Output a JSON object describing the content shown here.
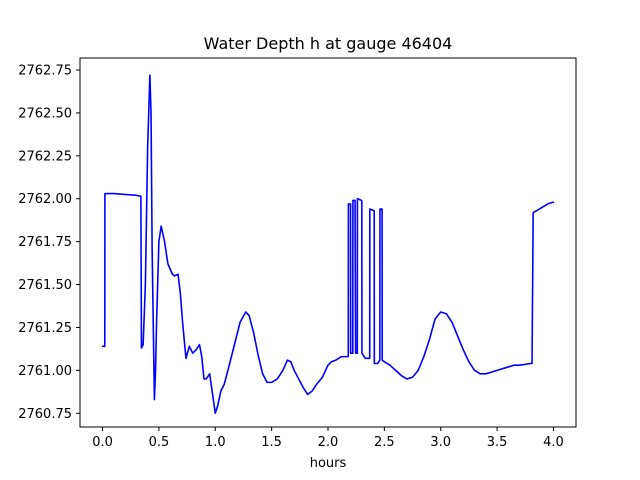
{
  "chart_data": {
    "type": "line",
    "title": "Water Depth h at gauge 46404",
    "xlabel": "hours",
    "ylabel": "",
    "xlim": [
      -0.2,
      4.2
    ],
    "ylim": [
      2760.67,
      2762.82
    ],
    "grid": false,
    "legend": "none",
    "x_ticks": [
      0.0,
      0.5,
      1.0,
      1.5,
      2.0,
      2.5,
      3.0,
      3.5,
      4.0
    ],
    "x_tick_labels": [
      "0.0",
      "0.5",
      "1.0",
      "1.5",
      "2.0",
      "2.5",
      "3.0",
      "3.5",
      "4.0"
    ],
    "y_ticks": [
      2760.75,
      2761.0,
      2761.25,
      2761.5,
      2761.75,
      2762.0,
      2762.25,
      2762.5,
      2762.75
    ],
    "y_tick_labels": [
      "2760.75",
      "2761.00",
      "2761.25",
      "2761.50",
      "2761.75",
      "2762.00",
      "2762.25",
      "2762.50",
      "2762.75"
    ],
    "series": [
      {
        "color": "#0000ff",
        "x": [
          0.0,
          0.02,
          0.021,
          0.1,
          0.2,
          0.3,
          0.33,
          0.34,
          0.345,
          0.36,
          0.38,
          0.4,
          0.42,
          0.43,
          0.44,
          0.46,
          0.47,
          0.48,
          0.5,
          0.52,
          0.55,
          0.58,
          0.62,
          0.64,
          0.67,
          0.69,
          0.71,
          0.74,
          0.77,
          0.8,
          0.83,
          0.86,
          0.88,
          0.9,
          0.92,
          0.95,
          0.97,
          1.0,
          1.02,
          1.05,
          1.08,
          1.12,
          1.17,
          1.22,
          1.27,
          1.3,
          1.34,
          1.38,
          1.42,
          1.46,
          1.5,
          1.55,
          1.6,
          1.64,
          1.67,
          1.7,
          1.74,
          1.78,
          1.82,
          1.86,
          1.9,
          1.95,
          2.0,
          2.03,
          2.07,
          2.12,
          2.16,
          2.18,
          2.181,
          2.2,
          2.201,
          2.22,
          2.221,
          2.24,
          2.245,
          2.26,
          2.261,
          2.3,
          2.301,
          2.33,
          2.36,
          2.37,
          2.371,
          2.41,
          2.411,
          2.44,
          2.46,
          2.461,
          2.48,
          2.481,
          2.5,
          2.55,
          2.6,
          2.65,
          2.7,
          2.75,
          2.8,
          2.85,
          2.9,
          2.95,
          3.0,
          3.05,
          3.1,
          3.15,
          3.2,
          3.25,
          3.3,
          3.35,
          3.4,
          3.45,
          3.5,
          3.55,
          3.6,
          3.65,
          3.7,
          3.8,
          3.81,
          3.82,
          3.85,
          3.9,
          3.95,
          4.0
        ],
        "y": [
          2761.14,
          2761.14,
          2762.03,
          2762.03,
          2762.025,
          2762.02,
          2762.015,
          2762.015,
          2761.13,
          2761.15,
          2761.5,
          2762.3,
          2762.72,
          2762.5,
          2761.7,
          2760.83,
          2761.0,
          2761.3,
          2761.75,
          2761.84,
          2761.75,
          2761.62,
          2761.56,
          2761.55,
          2761.56,
          2761.45,
          2761.28,
          2761.07,
          2761.14,
          2761.1,
          2761.12,
          2761.15,
          2761.08,
          2760.95,
          2760.95,
          2760.98,
          2760.89,
          2760.75,
          2760.79,
          2760.88,
          2760.92,
          2761.02,
          2761.15,
          2761.28,
          2761.34,
          2761.32,
          2761.22,
          2761.09,
          2760.98,
          2760.93,
          2760.93,
          2760.95,
          2761.0,
          2761.06,
          2761.05,
          2761.0,
          2760.95,
          2760.9,
          2760.86,
          2760.88,
          2760.92,
          2760.96,
          2761.03,
          2761.05,
          2761.06,
          2761.08,
          2761.08,
          2761.08,
          2761.97,
          2761.97,
          2761.1,
          2761.1,
          2761.99,
          2761.99,
          2761.1,
          2761.1,
          2762.0,
          2761.99,
          2761.1,
          2761.07,
          2761.07,
          2761.07,
          2761.94,
          2761.93,
          2761.04,
          2761.04,
          2761.06,
          2761.94,
          2761.94,
          2761.06,
          2761.05,
          2761.03,
          2761.0,
          2760.97,
          2760.95,
          2760.96,
          2761.0,
          2761.08,
          2761.18,
          2761.3,
          2761.34,
          2761.33,
          2761.28,
          2761.2,
          2761.12,
          2761.05,
          2761.0,
          2760.98,
          2760.98,
          2760.99,
          2761.0,
          2761.01,
          2761.02,
          2761.03,
          2761.03,
          2761.04,
          2761.04,
          2761.92,
          2761.93,
          2761.95,
          2761.97,
          2761.98
        ]
      }
    ]
  }
}
